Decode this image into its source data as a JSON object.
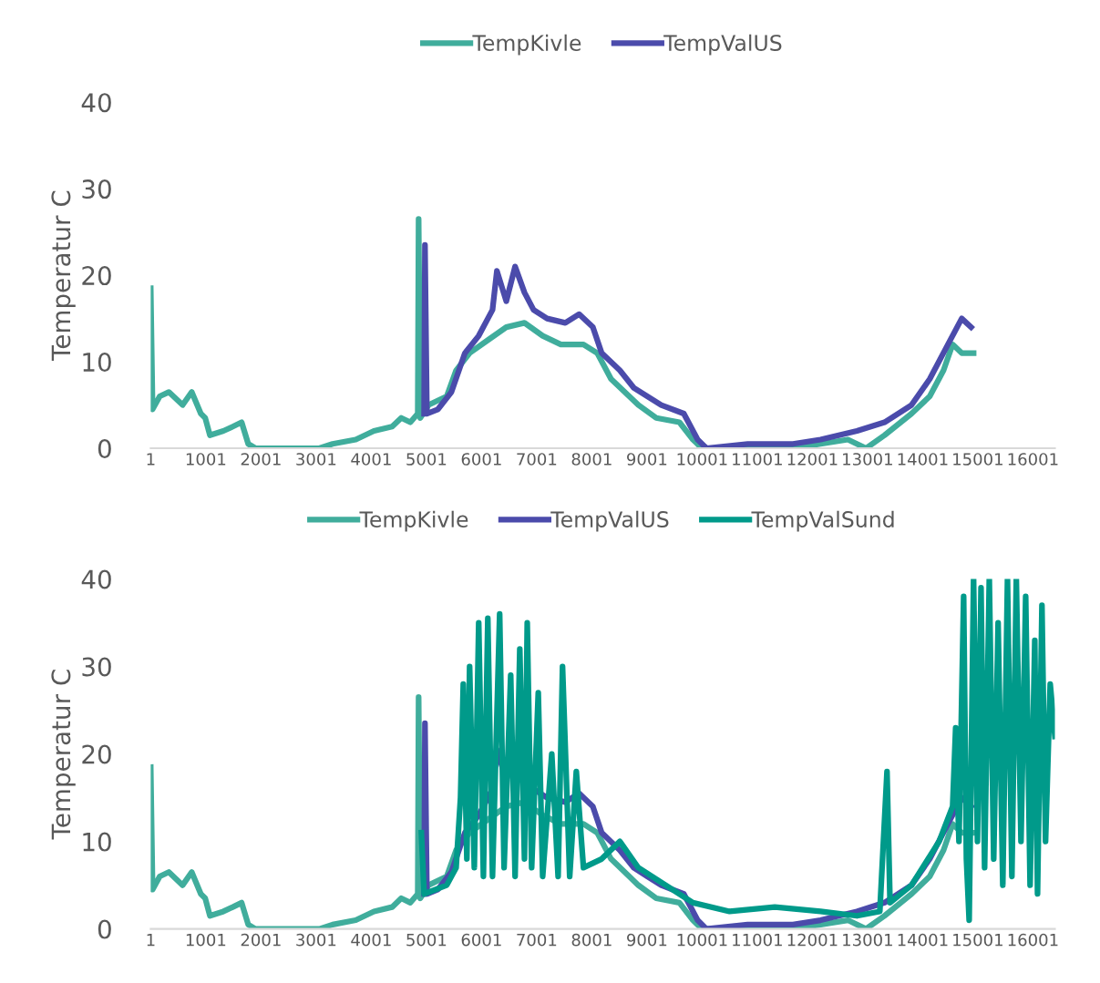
{
  "chart_data": [
    {
      "type": "line",
      "ylabel": "Temperatur C",
      "legend": "top",
      "grid": false,
      "line_style": "solid",
      "marker": "none",
      "xlim": [
        1,
        16400
      ],
      "xticks": [
        1,
        1001,
        2001,
        3001,
        4001,
        5001,
        6001,
        7001,
        8001,
        9001,
        10001,
        11001,
        12001,
        13001,
        14001,
        15001,
        16001
      ],
      "ylim": [
        0,
        40
      ],
      "yticks": [
        0,
        10,
        20,
        30,
        40
      ],
      "series": [
        {
          "name": "TempKivle",
          "color": "#40ad9c",
          "x": [
            1,
            35,
            165,
            330,
            580,
            745,
            910,
            990,
            1075,
            1320,
            1490,
            1650,
            1770,
            1900,
            3060,
            3300,
            3720,
            4050,
            4380,
            4545,
            4710,
            4845,
            4860,
            4890,
            5040,
            5370,
            5540,
            5785,
            6115,
            6450,
            6780,
            7110,
            7440,
            7850,
            8100,
            8350,
            8680,
            8845,
            9170,
            9590,
            9835,
            10000,
            10830,
            11650,
            12150,
            12645,
            12975,
            13310,
            13800,
            14130,
            14380,
            14545,
            14710,
            14925
          ],
          "values": [
            18.5,
            4.5,
            6,
            6.5,
            5,
            6.5,
            4,
            3.5,
            1.5,
            2,
            2.5,
            3,
            0.5,
            0,
            0,
            0.5,
            1,
            2,
            2.5,
            3.5,
            3,
            4,
            26.5,
            3.5,
            5,
            6,
            9,
            11,
            12.5,
            14,
            14.5,
            13,
            12,
            12,
            11,
            8,
            6,
            5,
            3.5,
            3,
            1,
            0,
            0,
            0,
            0.5,
            1,
            0,
            1.5,
            4,
            6,
            9,
            12,
            11,
            11
          ]
        },
        {
          "name": "TempValUS",
          "color": "#4b4bab",
          "x": [
            4960,
            4975,
            5010,
            5210,
            5455,
            5700,
            5950,
            6200,
            6280,
            6450,
            6610,
            6780,
            6945,
            7190,
            7520,
            7770,
            8020,
            8180,
            8510,
            8760,
            9010,
            9260,
            9670,
            9920,
            10080,
            10830,
            11650,
            12150,
            12810,
            13310,
            13800,
            14130,
            14460,
            14710,
            14880
          ],
          "values": [
            4,
            23.5,
            4,
            4.5,
            6.5,
            11,
            13,
            16,
            20.5,
            17,
            21,
            18,
            16,
            15,
            14.5,
            15.5,
            14,
            11,
            9,
            7,
            6,
            5,
            4,
            1,
            0,
            0.5,
            0.5,
            1,
            2,
            3,
            5,
            8,
            12,
            15,
            14
          ]
        }
      ]
    },
    {
      "type": "line",
      "ylabel": "Temperatur C",
      "legend": "top",
      "grid": false,
      "line_style": "solid",
      "marker": "none",
      "xlim": [
        1,
        16400
      ],
      "xticks": [
        1,
        1001,
        2001,
        3001,
        4001,
        5001,
        6001,
        7001,
        8001,
        9001,
        10001,
        11001,
        12001,
        13001,
        14001,
        15001,
        16001
      ],
      "ylim": [
        0,
        40
      ],
      "yticks": [
        0,
        10,
        20,
        30,
        40
      ],
      "series": [
        {
          "name": "TempKivle",
          "color": "#40ad9c",
          "x": [
            1,
            35,
            165,
            330,
            580,
            745,
            910,
            990,
            1075,
            1320,
            1490,
            1650,
            1770,
            1900,
            3060,
            3300,
            3720,
            4050,
            4380,
            4545,
            4710,
            4845,
            4860,
            4890,
            5040,
            5370,
            5540,
            5785,
            6115,
            6450,
            6780,
            7110,
            7440,
            7850,
            8100,
            8350,
            8680,
            8845,
            9170,
            9590,
            9835,
            10000,
            10830,
            11650,
            12150,
            12645,
            12975,
            13310,
            13800,
            14130,
            14380,
            14545,
            14710,
            14925
          ],
          "values": [
            18.5,
            4.5,
            6,
            6.5,
            5,
            6.5,
            4,
            3.5,
            1.5,
            2,
            2.5,
            3,
            0.5,
            0,
            0,
            0.5,
            1,
            2,
            2.5,
            3.5,
            3,
            4,
            26.5,
            3.5,
            5,
            6,
            9,
            11,
            12.5,
            14,
            14.5,
            13,
            12,
            12,
            11,
            8,
            6,
            5,
            3.5,
            3,
            1,
            0,
            0,
            0,
            0.5,
            1,
            0,
            1.5,
            4,
            6,
            9,
            12,
            11,
            11
          ]
        },
        {
          "name": "TempValUS",
          "color": "#4b4bab",
          "x": [
            4960,
            4975,
            5010,
            5210,
            5455,
            5700,
            5950,
            6200,
            6280,
            6450,
            6610,
            6780,
            6945,
            7190,
            7520,
            7770,
            8020,
            8180,
            8510,
            8760,
            9010,
            9260,
            9670,
            9920,
            10080,
            10830,
            11650,
            12150,
            12810,
            13310,
            13800,
            14130,
            14460,
            14710,
            14880
          ],
          "values": [
            4,
            23.5,
            4,
            4.5,
            6.5,
            11,
            13,
            16,
            20.5,
            17,
            21,
            18,
            16,
            15,
            14.5,
            15.5,
            14,
            11,
            9,
            7,
            6,
            5,
            4,
            1,
            0,
            0.5,
            0.5,
            1,
            2,
            3,
            5,
            8,
            12,
            15,
            14
          ]
        },
        {
          "name": "TempValSund",
          "color": "#009a8a",
          "x": [
            4910,
            4960,
            5370,
            5540,
            5620,
            5670,
            5735,
            5785,
            5870,
            5950,
            6035,
            6115,
            6200,
            6330,
            6410,
            6530,
            6610,
            6695,
            6780,
            6830,
            6910,
            7030,
            7110,
            7275,
            7390,
            7470,
            7600,
            7720,
            7850,
            8180,
            8510,
            8845,
            9340,
            9835,
            10500,
            11320,
            12150,
            12810,
            13225,
            13355,
            13410,
            13800,
            14300,
            14545,
            14600,
            14660,
            14745,
            14795,
            14845,
            14925,
            14995,
            15060,
            15125,
            15210,
            15290,
            15370,
            15455,
            15540,
            15620,
            15700,
            15785,
            15870,
            15950,
            16035,
            16085,
            16165,
            16230,
            16315,
            16400
          ],
          "values": [
            11,
            4,
            5,
            7,
            15,
            28,
            8,
            30,
            7,
            35,
            6,
            35.5,
            6,
            36,
            7,
            29,
            6,
            32,
            8,
            35,
            7,
            27,
            6,
            20,
            6,
            30,
            6,
            18,
            7,
            8,
            10,
            7,
            5,
            3,
            2,
            2.5,
            2,
            1.5,
            2,
            18,
            3,
            5,
            10,
            14,
            23,
            10,
            38,
            8,
            1,
            40,
            10,
            39,
            7,
            40,
            8,
            35,
            5,
            40,
            6,
            40,
            10,
            38,
            5,
            33,
            4,
            37,
            10,
            28,
            22
          ]
        }
      ]
    }
  ]
}
